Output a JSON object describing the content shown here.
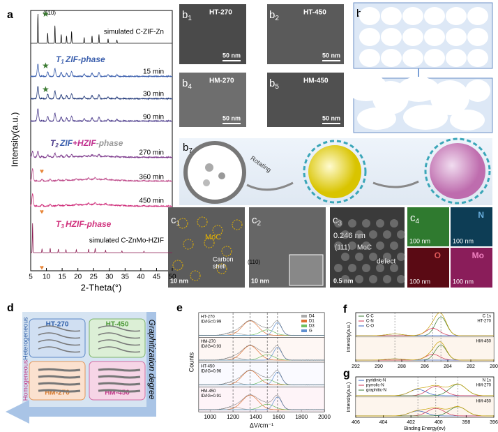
{
  "a": {
    "letter": "a",
    "y_label": "Intensity(a.u.)",
    "x_label": "2-Theta(°)",
    "x_ticks": [
      "5",
      "10",
      "15",
      "20",
      "25",
      "30",
      "35",
      "40",
      "45",
      "50"
    ],
    "traces": [
      "simulated C-ZIF-Zn",
      "15 min",
      "30 min",
      "90 min",
      "270 min",
      "360 min",
      "450 min",
      "simulated C-ZnMo-HZIF"
    ],
    "peak_labels": [
      "(110)",
      "(110)"
    ],
    "phase1": {
      "t": "T",
      "sub": "1",
      "text": "ZIF-phase"
    },
    "phase2": {
      "t": "T",
      "sub": "2",
      "text1": "ZIF",
      "plus": "+",
      "text2": "HZIF",
      "text3": "-phase"
    },
    "phase3": {
      "t": "T",
      "sub": "3",
      "text": "HZIF-phase"
    }
  },
  "b": {
    "panels": [
      {
        "letter": "b",
        "sub": "1",
        "label": "HT-270",
        "scale": "50 nm"
      },
      {
        "letter": "b",
        "sub": "2",
        "label": "HT-450",
        "scale": "50 nm"
      },
      {
        "letter": "b",
        "sub": "3"
      },
      {
        "letter": "b",
        "sub": "4",
        "label": "HM-270",
        "scale": "50 nm"
      },
      {
        "letter": "b",
        "sub": "5",
        "label": "HM-450",
        "scale": "50 nm"
      },
      {
        "letter": "b",
        "sub": "6"
      },
      {
        "letter": "b",
        "sub": "7"
      }
    ],
    "rotating": "Rotating"
  },
  "c": {
    "c1": {
      "letter": "c",
      "sub": "1",
      "moc": "MoC",
      "carbon": "Carbon",
      "shell": "shell",
      "scale": "10 nm"
    },
    "c2": {
      "letter": "c",
      "sub": "2",
      "scale": "10 nm"
    },
    "c3": {
      "letter": "c",
      "sub": "3",
      "spacing": "0.246 nm",
      "plane": "(111)",
      "moc": "MoC",
      "defect": "defect",
      "scale": "0.5 nm"
    },
    "c4": {
      "letter": "c",
      "sub": "4",
      "maps": [
        "",
        "N",
        "O",
        "Mo"
      ],
      "scale": [
        "100 nm",
        "100 nm",
        "100 nm",
        "100 nm"
      ]
    }
  },
  "d": {
    "letter": "d",
    "boxes": [
      "HT-270",
      "HT-450",
      "HM-270",
      "HM-450"
    ],
    "heterogeneous": "Heterogeneous",
    "homogeneous": "Homogeneous",
    "axis": "Graphitization degree"
  },
  "e": {
    "letter": "e",
    "y_label": "Counts",
    "x_label": "ΔV/cm⁻¹",
    "x_ticks": [
      "1000",
      "1200",
      "1400",
      "1600",
      "1800",
      "2000"
    ],
    "legend": [
      "D4",
      "D1",
      "D3",
      "G"
    ],
    "samples": [
      {
        "name": "HT-270",
        "ratio": "ID/IG=0.99"
      },
      {
        "name": "HM-270",
        "ratio": "ID/IG=0.93"
      },
      {
        "name": "HT-450",
        "ratio": "ID/IG=0.96"
      },
      {
        "name": "HM-450",
        "ratio": "ID/IG=0.91"
      }
    ]
  },
  "f": {
    "letter": "f",
    "y_label": "Intensity(a.u.)",
    "x_ticks": [
      "292",
      "290",
      "288",
      "286",
      "284",
      "282",
      "280"
    ],
    "legend": [
      "C-C",
      "C-N",
      "C-O"
    ],
    "core": "C 1s",
    "top": "HT-270",
    "bottom": "HM-450"
  },
  "g": {
    "letter": "g",
    "y_label": "Intensity(a.u.)",
    "x_label": "Binding Energy(ev)",
    "x_ticks": [
      "406",
      "404",
      "402",
      "400",
      "398",
      "396"
    ],
    "legend": [
      "pyridinic-N",
      "pyrrolic-N",
      "graphitic-N"
    ],
    "core": "N 1s",
    "top": "HM-270",
    "bottom": "HM-450"
  }
}
